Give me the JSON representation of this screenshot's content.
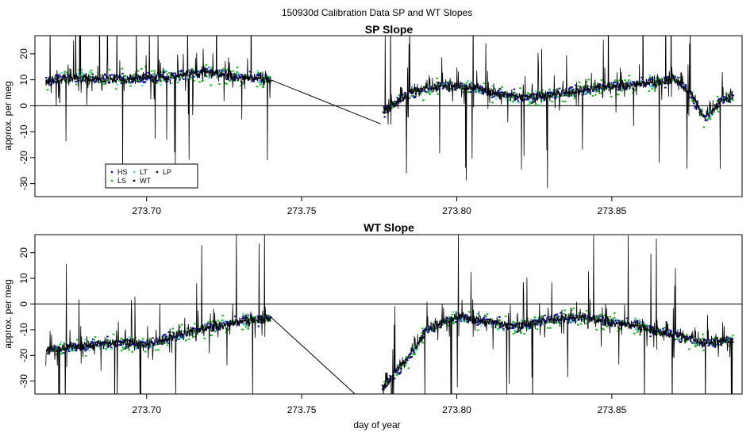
{
  "figure": {
    "title": "150930d   Calibration Data SP and WT Slopes",
    "xlabel": "day of year"
  },
  "legend": {
    "entries": [
      {
        "label": "HS",
        "color": "#1a1aa6"
      },
      {
        "label": "LT",
        "color": "#55d8d8"
      },
      {
        "label": "LP",
        "color": "#222222"
      },
      {
        "label": "LS",
        "color": "#22bb22"
      },
      {
        "label": "WT",
        "color": "#000000"
      }
    ]
  },
  "chart_data": [
    {
      "type": "line",
      "title": "SP Slope",
      "xlabel": "",
      "ylabel": "approx. per meg",
      "xlim": [
        273.664,
        273.892
      ],
      "ylim": [
        -35,
        27
      ],
      "x_ticks": [
        "273.70",
        "273.75",
        "273.80",
        "273.85"
      ],
      "y_ticks": [
        "20",
        "10",
        "0",
        "-10",
        "-20",
        "-30"
      ],
      "reference_line_y": 0,
      "segments": [
        {
          "x": [
            273.6675,
            273.675,
            273.69,
            273.705,
            273.72,
            273.73,
            273.74
          ],
          "y": [
            9,
            11,
            10,
            11,
            13,
            11,
            10
          ]
        },
        {
          "x": [
            273.74,
            273.7755
          ],
          "y": [
            10,
            -7
          ]
        },
        {
          "x": [
            273.776,
            273.785,
            273.795,
            273.805,
            273.815,
            273.825,
            273.835,
            273.845,
            273.855,
            273.865,
            273.87,
            273.875,
            273.88,
            273.885,
            273.889
          ],
          "y": [
            -2,
            5,
            8,
            7,
            4,
            3,
            5,
            7,
            8,
            9,
            11,
            5,
            -5,
            2,
            4
          ]
        }
      ]
    },
    {
      "type": "line",
      "title": "WT Slope",
      "xlabel": "day of year",
      "ylabel": "approx. per meg",
      "xlim": [
        273.664,
        273.892
      ],
      "ylim": [
        -35,
        27
      ],
      "x_ticks": [
        "273.70",
        "273.75",
        "273.80",
        "273.85"
      ],
      "y_ticks": [
        "20",
        "10",
        "0",
        "-10",
        "-20",
        "-30"
      ],
      "reference_line_y": 0,
      "segments": [
        {
          "x": [
            273.6675,
            273.675,
            273.69,
            273.7,
            273.71,
            273.72,
            273.73,
            273.74
          ],
          "y": [
            -18,
            -17,
            -15,
            -16,
            -12,
            -9,
            -7,
            -5
          ]
        },
        {
          "x": [
            273.74,
            273.769
          ],
          "y": [
            -5,
            -37
          ]
        },
        {
          "x": [
            273.776,
            273.78,
            273.785,
            273.79,
            273.8,
            273.81,
            273.82,
            273.83,
            273.84,
            273.85,
            273.86,
            273.87,
            273.88,
            273.889
          ],
          "y": [
            -33,
            -27,
            -20,
            -10,
            -5,
            -7,
            -9,
            -6,
            -5,
            -7,
            -9,
            -12,
            -15,
            -14
          ]
        }
      ]
    }
  ]
}
